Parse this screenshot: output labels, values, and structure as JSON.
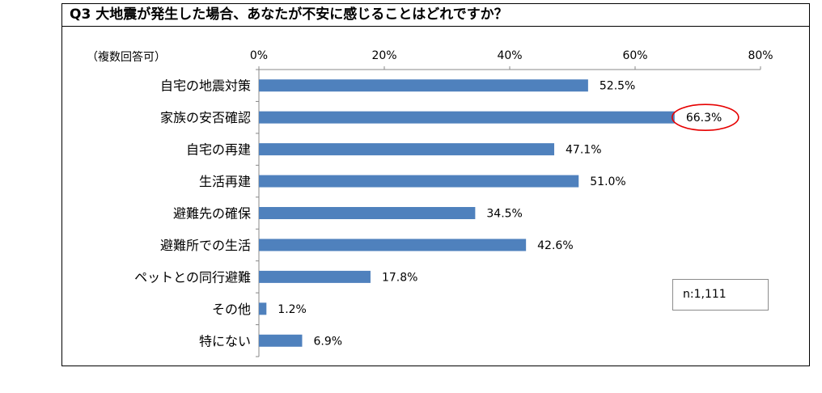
{
  "title": "Q3 大地震が発生した場合、あなたが不安に感じることはどれですか？",
  "note": "（複数回答可）",
  "sample_size": "n:1,111",
  "colors": {
    "bar": "#4f81bd",
    "highlight_ring": "#e60000",
    "axis": "#888888"
  },
  "chart_data": {
    "type": "bar",
    "orientation": "horizontal",
    "title": "Q3 大地震が発生した場合、あなたが不安に感じることはどれですか？",
    "xlabel": "",
    "ylabel": "",
    "xlim": [
      0,
      80
    ],
    "x_ticks": [
      "0%",
      "20%",
      "40%",
      "60%",
      "80%"
    ],
    "x_tick_values": [
      0,
      20,
      40,
      60,
      80
    ],
    "grid": false,
    "legend": "none",
    "categories": [
      "自宅の地震対策",
      "家族の安否確認",
      "自宅の再建",
      "生活再建",
      "避難先の確保",
      "避難所での生活",
      "ペットとの同行避難",
      "その他",
      "特にない"
    ],
    "values": [
      52.5,
      66.3,
      47.1,
      51.0,
      34.5,
      42.6,
      17.8,
      1.2,
      6.9
    ],
    "value_labels": [
      "52.5%",
      "66.3%",
      "47.1%",
      "51.0%",
      "34.5%",
      "42.6%",
      "17.8%",
      "1.2%",
      "6.9%"
    ],
    "highlighted_category": "家族の安否確認"
  }
}
